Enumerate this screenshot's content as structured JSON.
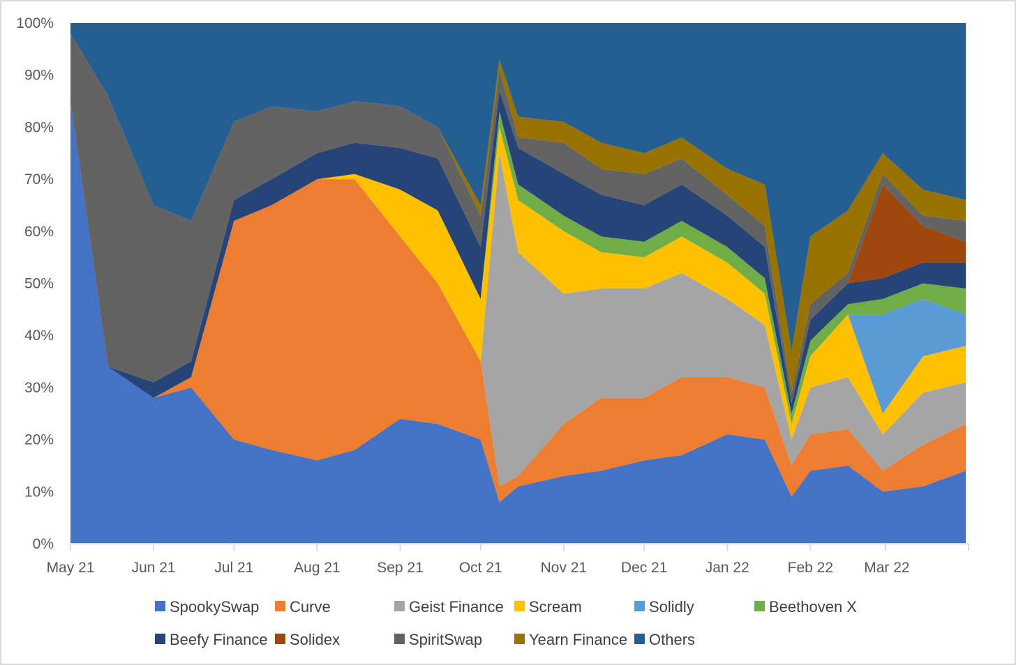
{
  "chart_data": {
    "type": "area",
    "stacked": true,
    "normalized": true,
    "y_format": "percent",
    "ylim": [
      0,
      100
    ],
    "y_ticks": [
      "0%",
      "10%",
      "20%",
      "30%",
      "40%",
      "50%",
      "60%",
      "70%",
      "80%",
      "90%",
      "100%"
    ],
    "x_tick_labels": [
      "May 21",
      "Jun 21",
      "Jul 21",
      "Aug 21",
      "Sep 21",
      "Oct 21",
      "Nov 21",
      "Dec 21",
      "Jan 22",
      "Feb 22",
      "Mar 22"
    ],
    "x_range": [
      "May 21",
      "end of Mar 22"
    ],
    "grid": false,
    "legend_position": "bottom",
    "x": [
      "2021-05-01",
      "2021-05-15",
      "2021-06-01",
      "2021-06-15",
      "2021-07-01",
      "2021-07-15",
      "2021-08-01",
      "2021-08-15",
      "2021-09-01",
      "2021-09-15",
      "2021-10-01",
      "2021-10-08",
      "2021-10-15",
      "2021-11-01",
      "2021-11-15",
      "2021-12-01",
      "2021-12-15",
      "2022-01-01",
      "2022-01-15",
      "2022-01-25",
      "2022-02-01",
      "2022-02-15",
      "2022-02-28",
      "2022-03-15",
      "2022-03-31"
    ],
    "series": [
      {
        "name": "SpookySwap",
        "color": "#4472C4",
        "values": [
          85,
          34,
          28,
          30,
          20,
          18,
          16,
          18,
          24,
          23,
          20,
          8,
          11,
          13,
          14,
          16,
          17,
          21,
          20,
          9,
          14,
          15,
          10,
          11,
          14
        ]
      },
      {
        "name": "Curve",
        "color": "#ED7D31",
        "values": [
          0,
          0,
          0,
          2,
          42,
          47,
          54,
          52,
          35,
          27,
          15,
          3,
          2,
          10,
          14,
          12,
          15,
          11,
          10,
          6,
          7,
          7,
          4,
          8,
          9
        ]
      },
      {
        "name": "Geist Finance",
        "color": "#A5A5A5",
        "values": [
          0,
          0,
          0,
          0,
          0,
          0,
          0,
          0,
          0,
          0,
          0,
          64,
          43,
          25,
          21,
          21,
          20,
          15,
          12,
          5,
          9,
          10,
          7,
          10,
          8
        ]
      },
      {
        "name": "Scream",
        "color": "#FFC000",
        "values": [
          0,
          0,
          0,
          0,
          0,
          0,
          0,
          1,
          9,
          14,
          12,
          5,
          10,
          12,
          7,
          6,
          7,
          7,
          6,
          3,
          6,
          12,
          4,
          7,
          7
        ]
      },
      {
        "name": "Solidly",
        "color": "#5B9BD5",
        "values": [
          0,
          0,
          0,
          0,
          0,
          0,
          0,
          0,
          0,
          0,
          0,
          0,
          0,
          0,
          0,
          0,
          0,
          0,
          0,
          0,
          0,
          0,
          19,
          11,
          6
        ]
      },
      {
        "name": "Beethoven X",
        "color": "#70AD47",
        "values": [
          0,
          0,
          0,
          0,
          0,
          0,
          0,
          0,
          0,
          0,
          0,
          3,
          3,
          3,
          3,
          3,
          3,
          3,
          3,
          2,
          3,
          2,
          3,
          3,
          5
        ]
      },
      {
        "name": "Beefy Finance",
        "color": "#264478",
        "values": [
          0,
          0,
          3,
          3,
          4,
          5,
          5,
          6,
          8,
          10,
          10,
          4,
          7,
          8,
          8,
          7,
          7,
          6,
          6,
          2,
          4,
          4,
          4,
          4,
          5
        ]
      },
      {
        "name": "Solidex",
        "color": "#9E480E",
        "values": [
          0,
          0,
          0,
          0,
          0,
          0,
          0,
          0,
          0,
          0,
          0,
          0,
          0,
          0,
          0,
          0,
          0,
          0,
          0,
          0,
          0,
          0,
          18,
          7,
          4
        ]
      },
      {
        "name": "SpiritSwap",
        "color": "#636363",
        "values": [
          13,
          52,
          34,
          27,
          15,
          14,
          8,
          8,
          8,
          6,
          6,
          4,
          2,
          6,
          5,
          6,
          5,
          4,
          4,
          2,
          3,
          2,
          2,
          2,
          4
        ]
      },
      {
        "name": "Yearn Finance",
        "color": "#997300",
        "values": [
          0,
          0,
          0,
          0,
          0,
          0,
          0,
          0,
          0,
          0,
          2,
          2,
          4,
          4,
          5,
          4,
          4,
          5,
          8,
          8,
          13,
          12,
          4,
          5,
          4
        ]
      },
      {
        "name": "Others",
        "color": "#255E91",
        "values": [
          2,
          14,
          35,
          38,
          19,
          16,
          17,
          15,
          16,
          20,
          35,
          7,
          18,
          19,
          23,
          25,
          22,
          28,
          31,
          63,
          41,
          36,
          25,
          32,
          34
        ]
      }
    ]
  }
}
